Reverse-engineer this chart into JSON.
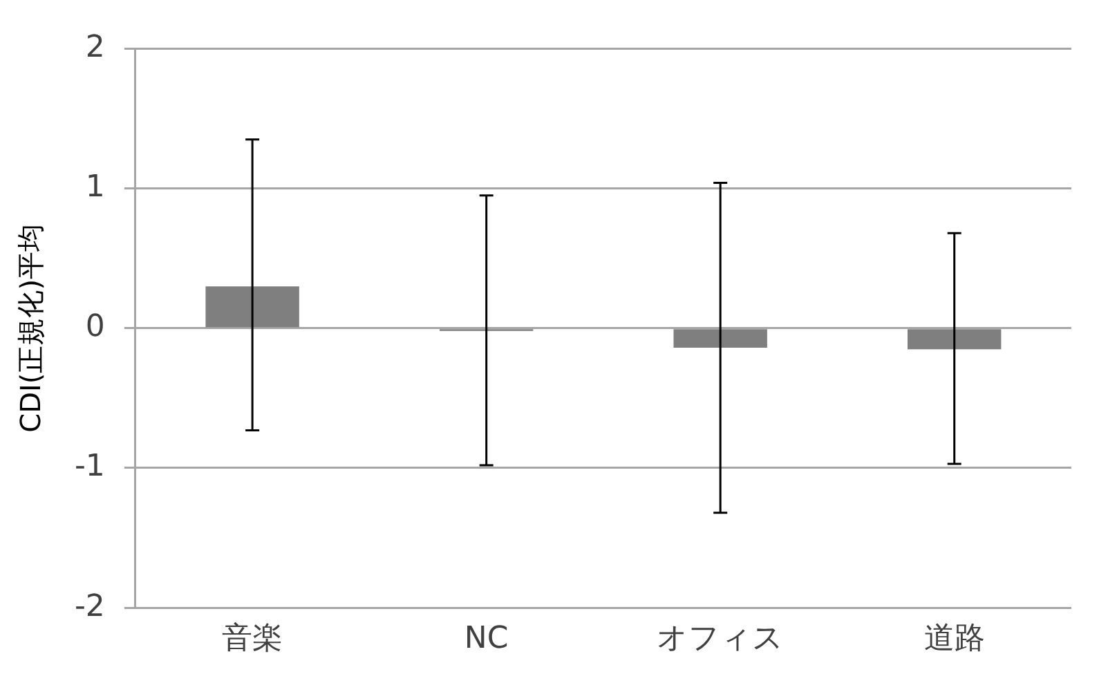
{
  "chart_data": {
    "type": "bar",
    "ylabel": "CDI(正規化)平均",
    "categories": [
      "音楽",
      "NC",
      "オフィス",
      "道路"
    ],
    "values": [
      0.3,
      -0.02,
      -0.14,
      -0.15
    ],
    "errors": [
      [
        -0.73,
        1.35
      ],
      [
        -0.98,
        0.95
      ],
      [
        -1.32,
        1.04
      ],
      [
        -0.97,
        0.68
      ]
    ],
    "color": "#7f7f7f",
    "ylim": [
      -2,
      2
    ],
    "yticks": [
      -2,
      -1,
      0,
      1,
      2
    ],
    "grid": "y",
    "legend": false
  }
}
